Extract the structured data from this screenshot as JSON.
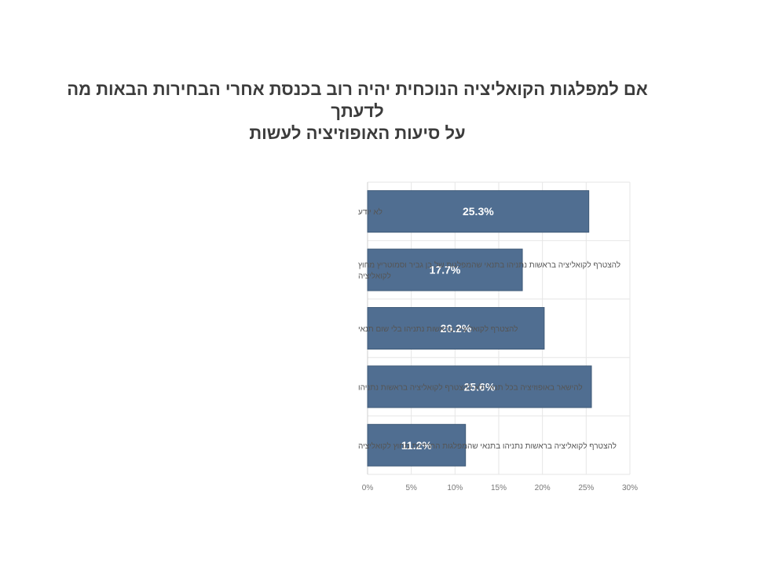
{
  "chart_data": {
    "type": "bar",
    "orientation": "horizontal",
    "title_lines": [
      "אם למפלגות הקואליציה הנוכחית יהיה רוב בכנסת אחרי הבחירות הבאות מה לדעתך",
      "על סיעות האופוזיציה לעשות"
    ],
    "categories": [
      [
        "לא יודע"
      ],
      [
        "להצטרף לקואליציה בראשות נתניהו בתנאי שהמפלגות של בן גביר וסמוטריץ מחוץ",
        "לקואליציה"
      ],
      [
        "להצטרף לקואליציה בראשות נתניהו בלי שום תנאי"
      ],
      [
        "להישאר באופוזיציה בכל תנאי ולא להצטרף לקואליציה בראשות נתניהו"
      ],
      [
        "להצטרף לקואליציה בראשות נתניהו בתנאי שהמפלגות החרדיות מחוץ לקואליציה"
      ]
    ],
    "values": [
      25.3,
      17.7,
      20.2,
      25.6,
      11.2
    ],
    "value_labels": [
      "25.3%",
      "17.7%",
      "20.2%",
      "25.6%",
      "11.2%"
    ],
    "xlim": [
      0,
      30
    ],
    "xticks": [
      "0%",
      "5%",
      "10%",
      "15%",
      "20%",
      "25%",
      "30%"
    ],
    "bar_color": "#506e91",
    "grid": true
  }
}
